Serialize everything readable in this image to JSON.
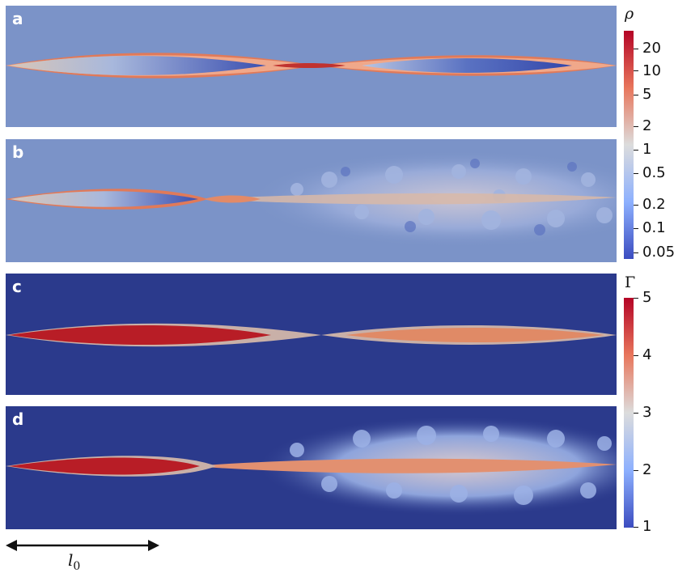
{
  "panels": [
    {
      "label": "a",
      "background": "#7b93c8"
    },
    {
      "label": "b",
      "background": "#7b93c8"
    },
    {
      "label": "c",
      "background": "#2b3a8c"
    },
    {
      "label": "d",
      "background": "#2b3a8c"
    }
  ],
  "colorbars": [
    {
      "title": "ρ",
      "ticks": [
        "20",
        "10",
        "5",
        "2",
        "1",
        "0.5",
        "0.2",
        "0.1",
        "0.05"
      ]
    },
    {
      "title": "Γ",
      "ticks": [
        "5",
        "4",
        "3",
        "2",
        "1"
      ]
    }
  ],
  "scale_bar": {
    "symbol": "l",
    "subscript": "0"
  }
}
